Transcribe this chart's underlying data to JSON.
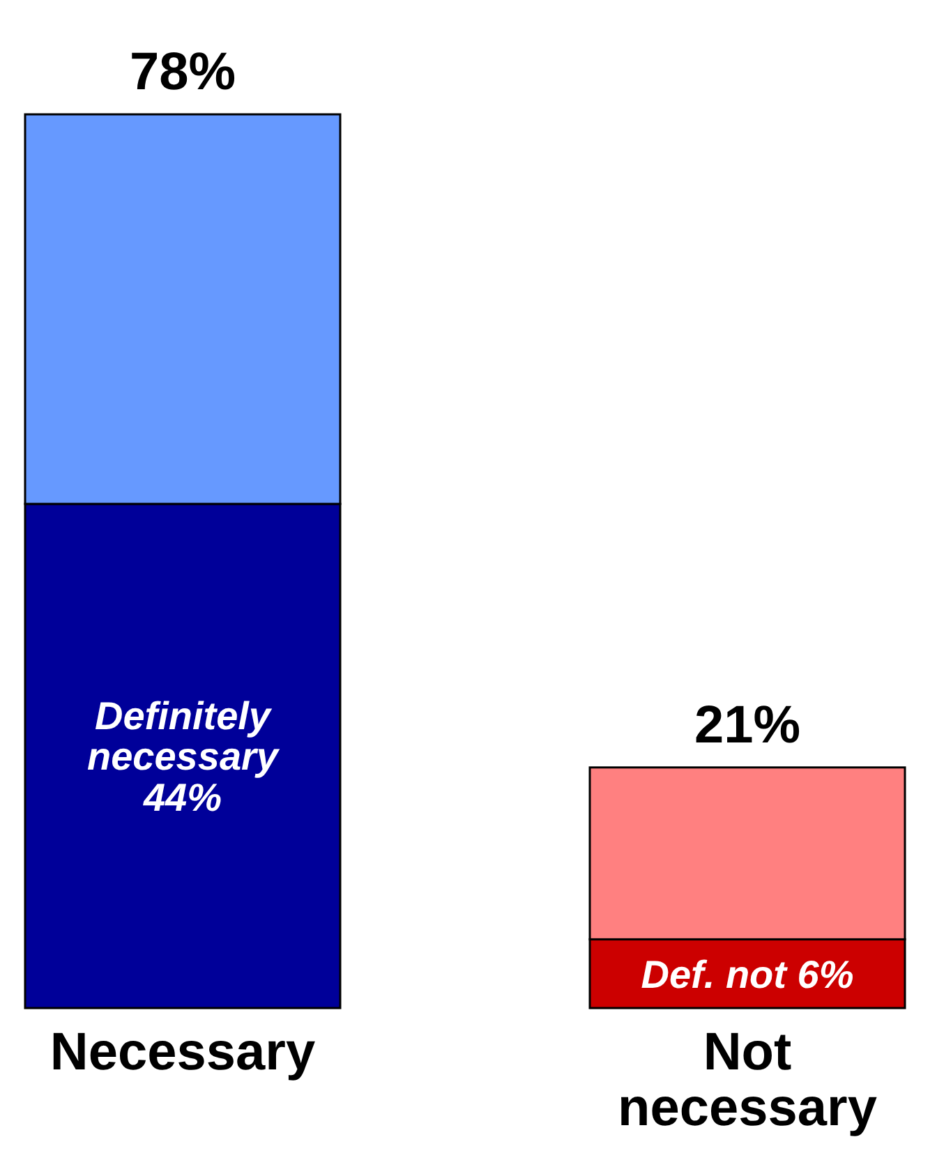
{
  "chart_data": {
    "type": "bar",
    "stacked": true,
    "categories": [
      "Necessary",
      "Not necessary"
    ],
    "series": [
      {
        "colors": [
          "#000099",
          "#cc0000"
        ],
        "values": [
          44,
          6
        ],
        "value_labels": [
          "Definitely necessary 44%",
          "Def. not 6%"
        ]
      },
      {
        "colors": [
          "#6699ff",
          "#ff8080"
        ],
        "values": [
          34,
          15
        ]
      }
    ],
    "totals": [
      "78%",
      "21%"
    ]
  }
}
